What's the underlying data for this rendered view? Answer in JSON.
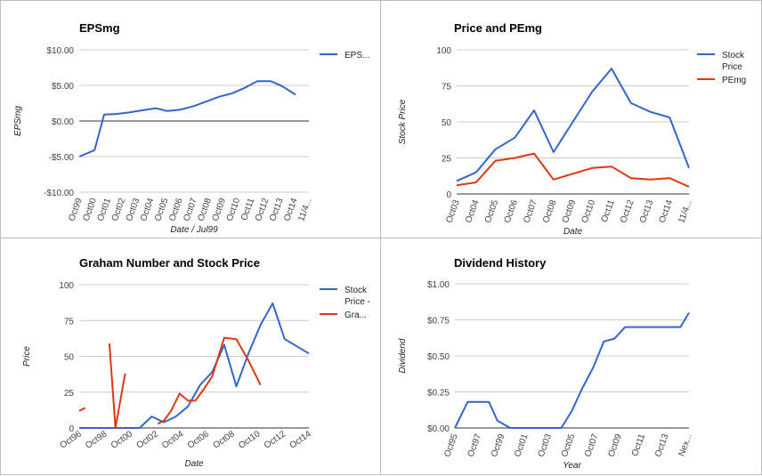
{
  "colors": {
    "blue": "#3366cc",
    "red": "#dc3912",
    "grid": "#cccccc",
    "zero": "#333333"
  },
  "chart_data": [
    {
      "id": "eps",
      "type": "line",
      "title": "EPSmg",
      "xlabel": "Date / Jul99",
      "ylabel": "EPSmg",
      "categories": [
        "Oct99",
        "Oct00",
        "Oct01",
        "Oct02",
        "Oct03",
        "Oct04",
        "Oct05",
        "Oct06",
        "Oct07",
        "Oct08",
        "Oct09",
        "Oct10",
        "Oct11",
        "Oct12",
        "Oct13",
        "Oct14",
        "11/4..."
      ],
      "yticks": [
        "$10.00",
        "$5.00",
        "$0.00",
        "-$5.00",
        "-$10.00"
      ],
      "ylim": [
        -10,
        10
      ],
      "grid": true,
      "legend_position": "right",
      "series": [
        {
          "name": "EPS...",
          "color": "#3366cc",
          "x": [
            0,
            0.8,
            1.3,
            2,
            2.6,
            3.3,
            4,
            4.6,
            5.3,
            6,
            6.6,
            7.3,
            8,
            8.6,
            9.3,
            10,
            10.6,
            11.3,
            12
          ],
          "values": [
            -5,
            -4.1,
            0.9,
            1.0,
            1.2,
            1.5,
            1.8,
            1.4,
            1.6,
            2.1,
            2.7,
            3.4,
            3.9,
            4.6,
            5.6,
            5.6,
            4.9,
            3.7,
            null
          ]
        }
      ]
    },
    {
      "id": "pe",
      "type": "line",
      "title": "Price and PEmg",
      "xlabel": "Date",
      "ylabel": "Stock Price",
      "categories": [
        "Oct03",
        "Oct04",
        "Oct05",
        "Oct06",
        "Oct07",
        "Oct08",
        "Oct09",
        "Oct10",
        "Oct11",
        "Oct12",
        "Oct13",
        "Oct14",
        "11/4..."
      ],
      "yticks": [
        "100",
        "75",
        "50",
        "25",
        "0"
      ],
      "ylim": [
        0,
        100
      ],
      "grid": true,
      "legend_position": "right",
      "series": [
        {
          "name": "Stock Price",
          "color": "#3366cc",
          "x": [
            0,
            1,
            2,
            3,
            4,
            5,
            6,
            7,
            8,
            9,
            10,
            11,
            12
          ],
          "values": [
            9,
            15,
            31,
            39,
            58,
            29,
            50,
            71,
            87,
            63,
            57,
            53,
            18
          ]
        },
        {
          "name": "PEmg",
          "color": "#dc3912",
          "x": [
            0,
            1,
            2,
            3,
            4,
            5,
            6,
            7,
            8,
            9,
            10,
            11,
            12
          ],
          "values": [
            6,
            8,
            23,
            25,
            28,
            10,
            14,
            18,
            19,
            11,
            10,
            11,
            5
          ]
        }
      ]
    },
    {
      "id": "graham",
      "type": "line",
      "title": "Graham Number and Stock Price",
      "xlabel": "Date",
      "ylabel": "Price",
      "categories": [
        "Oct96",
        "Oct98",
        "Oct00",
        "Oct02",
        "Oct04",
        "Oct06",
        "Oct08",
        "Oct10",
        "Oct12",
        "Oct14"
      ],
      "yticks": [
        "100",
        "75",
        "50",
        "25",
        "0"
      ],
      "ylim": [
        0,
        100
      ],
      "grid": true,
      "legend_position": "right",
      "series": [
        {
          "name": "Stock Price -",
          "color": "#3366cc",
          "x": [
            0,
            2,
            4,
            5,
            6,
            7,
            8,
            9,
            10,
            11,
            12,
            13,
            14,
            15,
            16,
            17,
            18,
            19
          ],
          "values": [
            0,
            0,
            0,
            0,
            8,
            4,
            8,
            15,
            30,
            39,
            58,
            29,
            52,
            72,
            87,
            62,
            57,
            52
          ]
        },
        {
          "name": "Gra...",
          "color": "#dc3912",
          "x": [
            0,
            0.5,
            null,
            2.5,
            3,
            3.8,
            null,
            6.5,
            7,
            7.6,
            8.3,
            9,
            9.6,
            10.3,
            11,
            12,
            13,
            14,
            15,
            16.2,
            17.2,
            18.2,
            19
          ],
          "values": [
            12,
            14,
            null,
            59,
            0,
            38,
            null,
            3,
            5,
            12,
            24,
            19,
            19,
            27,
            36,
            63,
            62,
            47,
            30,
            null,
            null,
            null,
            null
          ]
        }
      ]
    },
    {
      "id": "dividend",
      "type": "line",
      "title": "Dividend History",
      "xlabel": "Year",
      "ylabel": "Dividend",
      "categories": [
        "Oct95",
        "Oct97",
        "Oct99",
        "Oct01",
        "Oct03",
        "Oct05",
        "Oct07",
        "Oct09",
        "Oct11",
        "Oct13",
        "Nex..."
      ],
      "yticks": [
        "$1.00",
        "$0.75",
        "$0.50",
        "$0.25",
        "$0.00"
      ],
      "ylim": [
        0,
        1
      ],
      "grid": true,
      "legend_position": "none",
      "series": [
        {
          "name": "",
          "color": "#3366cc",
          "x": [
            0,
            0.6,
            1,
            1.6,
            2,
            2.6,
            3,
            4,
            5,
            5.5,
            6,
            6.5,
            7,
            7.5,
            8,
            9,
            10,
            10.6,
            11
          ],
          "values": [
            0,
            0.18,
            0.18,
            0.18,
            0.05,
            0,
            0,
            0,
            0,
            0.12,
            0.28,
            0.42,
            0.6,
            0.62,
            0.7,
            0.7,
            0.7,
            0.7,
            0.8
          ]
        }
      ]
    }
  ]
}
